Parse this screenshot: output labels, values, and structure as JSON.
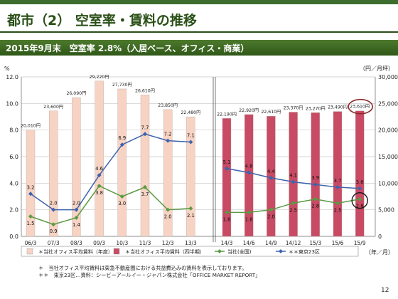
{
  "page": {
    "title": "都市（2） 空室率・賃料の推移",
    "subtitle": "2015年9月末　空室率 2.8%（入居ベース、オフィス・商業）",
    "notes": [
      "＊　当社オフィス平均賃料は東急不動産圏における共益費込みの賃料を表示しております。",
      "＊＊　東京23区…資料：シービーアールイー・ジャパン株式会社「OFFICE MARKET REPORT」"
    ],
    "page_number": "12"
  },
  "chart_data": {
    "type": "bar",
    "title": "",
    "ylabel_left": "%",
    "ylabel_right": "（円／月坪）",
    "xlabel": "（年／月）",
    "ylim_left": [
      0,
      12
    ],
    "ylim_right": [
      0,
      30000
    ],
    "yticks_left": [
      "0.0",
      "2.0",
      "4.0",
      "6.0",
      "8.0",
      "10.0",
      "12.0"
    ],
    "yticks_right": [
      "0",
      "5,000",
      "10,000",
      "15,000",
      "20,000",
      "25,000",
      "30,000"
    ],
    "categories": [
      "06/3",
      "07/3",
      "08/3",
      "09/3",
      "10/3",
      "11/3",
      "12/3",
      "13/3",
      "14/3",
      "14/6",
      "14/9",
      "14/12",
      "15/3",
      "15/6",
      "15/9"
    ],
    "series": [
      {
        "name": "＊当社オフィス平均賃料（年度）",
        "kind": "bar",
        "axis": "right",
        "color": "#f7d3c4",
        "values": [
          20010,
          23600,
          26090,
          29220,
          27730,
          26610,
          23850,
          22480,
          null,
          null,
          null,
          null,
          null,
          null,
          null
        ],
        "labels": [
          "20,010円",
          "23,600円",
          "26,090円",
          "29,220円",
          "27,730円",
          "26,610円",
          "23,850円",
          "22,480円",
          "",
          "",
          "",
          "",
          "",
          "",
          ""
        ]
      },
      {
        "name": "＊当社オフィス平均賃料（四半期）",
        "kind": "bar",
        "axis": "right",
        "color": "#c94a64",
        "values": [
          null,
          null,
          null,
          null,
          null,
          null,
          null,
          null,
          22190,
          22920,
          22610,
          23370,
          23270,
          23490,
          23610
        ],
        "labels": [
          "",
          "",
          "",
          "",
          "",
          "",
          "",
          "",
          "22,190円",
          "22,920円",
          "22,610円",
          "23,370円",
          "23,270円",
          "23,490円",
          "23,610円"
        ]
      },
      {
        "name": "当社(全国)",
        "kind": "line",
        "axis": "left",
        "color": "#5b9a43",
        "values": [
          1.5,
          0.9,
          1.4,
          3.8,
          3.0,
          3.7,
          2.0,
          2.1,
          1.8,
          1.8,
          2.0,
          2.5,
          2.8,
          2.5,
          2.8
        ]
      },
      {
        "name": "＊＊東京23区",
        "kind": "line",
        "axis": "left",
        "color": "#3d63ad",
        "values": [
          3.2,
          2.0,
          2.0,
          4.6,
          6.9,
          7.7,
          7.2,
          7.1,
          5.1,
          4.8,
          4.4,
          4.1,
          3.9,
          3.7,
          3.6
        ]
      }
    ],
    "legend": [
      "＊当社オフィス平均賃料（年度）",
      "＊当社オフィス平均賃料（四半期）",
      "当社(全国)",
      "＊＊東京23区"
    ],
    "highlight_color": "#8b2a2a"
  }
}
